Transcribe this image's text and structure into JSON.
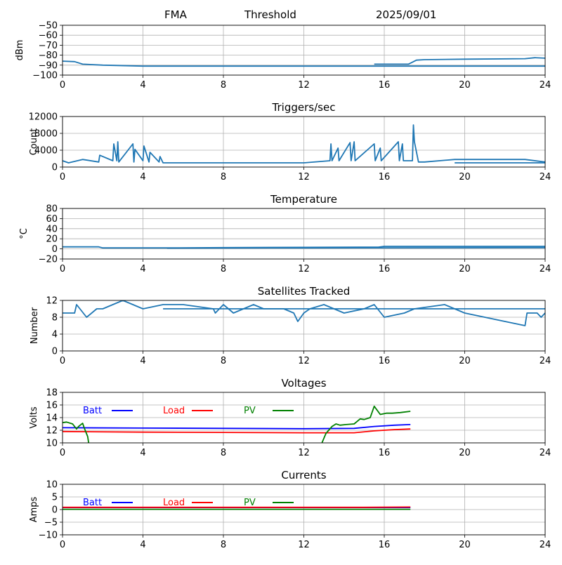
{
  "header": {
    "station": "FMA",
    "mode": "Threshold",
    "date": "2025/09/01"
  },
  "chart_data": [
    {
      "type": "line",
      "title": "",
      "ylabel": "dBm",
      "xlim": [
        0,
        24
      ],
      "ylim": [
        -100,
        -50
      ],
      "xticks": [
        "0",
        "4",
        "8",
        "12",
        "16",
        "20",
        "24"
      ],
      "yticks": [
        "-50",
        "-60",
        "-70",
        "-80",
        "-90",
        "-100"
      ],
      "grid": true,
      "series": [
        {
          "color": "#1f77b4",
          "x": [
            0,
            0.6,
            1,
            2,
            4,
            8,
            12,
            16,
            24
          ],
          "y": [
            -86,
            -86.5,
            -89,
            -90,
            -91,
            -91,
            -91,
            -91,
            -91
          ]
        },
        {
          "color": "#1f77b4",
          "x": [
            15.5,
            17.2,
            17.6,
            18,
            20,
            23,
            23.5,
            24
          ],
          "y": [
            -89,
            -89,
            -85,
            -84.5,
            -84,
            -83.5,
            -82.5,
            -83
          ]
        }
      ]
    },
    {
      "type": "line",
      "title": "Triggers/sec",
      "ylabel": "Count",
      "xlim": [
        0,
        24
      ],
      "ylim": [
        0,
        12000
      ],
      "xticks": [
        "0",
        "4",
        "8",
        "12",
        "16",
        "20",
        "24"
      ],
      "yticks": [
        "0",
        "4000",
        "8000",
        "12000"
      ],
      "grid": true,
      "series": [
        {
          "color": "#1f77b4",
          "x": [
            0,
            0.3,
            1.0,
            1.8,
            1.85,
            2.5,
            2.55,
            2.7,
            2.75,
            2.8,
            3.5,
            3.55,
            3.6,
            4.0,
            4.05,
            4.3,
            4.35,
            4.8,
            4.85,
            5,
            8,
            12,
            13.3,
            13.35,
            13.4,
            13.7,
            13.75,
            14.3,
            14.35,
            14.5,
            14.55,
            15.5,
            15.55,
            15.8,
            15.85,
            16.7,
            16.75,
            16.9,
            16.95,
            17.4,
            17.45,
            17.5,
            17.7,
            18,
            19.5,
            23,
            24
          ],
          "y": [
            1500,
            1000,
            1800,
            1200,
            2800,
            1500,
            5500,
            1500,
            6000,
            1200,
            5500,
            1200,
            4200,
            1500,
            5000,
            1200,
            3500,
            1200,
            2500,
            1000,
            1000,
            1000,
            1500,
            5500,
            1500,
            4500,
            1500,
            5800,
            1500,
            6000,
            1500,
            5500,
            1500,
            4500,
            1500,
            6000,
            1500,
            5500,
            1500,
            1500,
            10000,
            6000,
            1200,
            1200,
            1800,
            1800,
            1200
          ]
        },
        {
          "color": "#1f77b4",
          "x": [
            19.5,
            24
          ],
          "y": [
            1000,
            1000
          ]
        }
      ]
    },
    {
      "type": "line",
      "title": "Temperature",
      "ylabel": "°C",
      "xlim": [
        0,
        24
      ],
      "ylim": [
        -20,
        80
      ],
      "xticks": [
        "0",
        "4",
        "8",
        "12",
        "16",
        "20",
        "24"
      ],
      "yticks": [
        "-20",
        "0",
        "20",
        "40",
        "60",
        "80"
      ],
      "grid": true,
      "series": [
        {
          "color": "#1f77b4",
          "x": [
            0,
            1.8,
            2,
            5.2,
            8,
            12,
            15.7,
            16,
            24
          ],
          "y": [
            4,
            4,
            2,
            2,
            2.5,
            3,
            3.5,
            5,
            5
          ]
        },
        {
          "color": "#1f77b4",
          "x": [
            5.2,
            12,
            24
          ],
          "y": [
            1.5,
            2,
            2.5
          ]
        }
      ]
    },
    {
      "type": "line",
      "title": "Satellites Tracked",
      "ylabel": "Number",
      "xlim": [
        0,
        24
      ],
      "ylim": [
        0,
        12
      ],
      "xticks": [
        "0",
        "4",
        "8",
        "12",
        "16",
        "20",
        "24"
      ],
      "yticks": [
        "0",
        "4",
        "8",
        "12"
      ],
      "grid": true,
      "series": [
        {
          "color": "#1f77b4",
          "x": [
            0,
            0.6,
            0.7,
            1.2,
            1.7,
            2.0,
            2.5,
            3.0,
            3.5,
            4.0,
            5.0,
            6.0,
            7.5,
            7.6,
            8.0,
            8.5,
            9.0,
            9.5,
            10,
            11,
            11.5,
            11.7,
            12,
            12.3,
            13,
            14,
            15,
            15.5,
            16.0,
            17.0,
            17.5,
            19.0,
            19.5,
            20,
            23.0,
            23.1,
            23.6,
            23.8,
            24
          ],
          "y": [
            9,
            9,
            11,
            8,
            10,
            10,
            11,
            12,
            11,
            10,
            11,
            11,
            10,
            9,
            11,
            9,
            10,
            11,
            10,
            10,
            9,
            7,
            9,
            10,
            11,
            9,
            10,
            11,
            8,
            9,
            10,
            11,
            10,
            9,
            6,
            9,
            9,
            8,
            9
          ]
        },
        {
          "color": "#1f77b4",
          "x": [
            5.0,
            24
          ],
          "y": [
            10,
            10
          ]
        }
      ]
    },
    {
      "type": "line",
      "title": "Voltages",
      "ylabel": "Volts",
      "xlim": [
        0,
        24
      ],
      "ylim": [
        10,
        18
      ],
      "xticks": [
        "0",
        "4",
        "8",
        "12",
        "16",
        "20",
        "24"
      ],
      "yticks": [
        "10",
        "12",
        "14",
        "16",
        "18"
      ],
      "grid": true,
      "legend_position": "top",
      "series": [
        {
          "name": "Batt",
          "color": "#0000ff",
          "x": [
            0,
            4,
            8,
            12,
            14.5,
            15.5,
            16.5,
            17.3
          ],
          "y": [
            12.4,
            12.35,
            12.3,
            12.25,
            12.3,
            12.6,
            12.8,
            12.9
          ]
        },
        {
          "name": "Load",
          "color": "#ff0000",
          "x": [
            0,
            4,
            8,
            12,
            14.5,
            15.5,
            16.5,
            17.3
          ],
          "y": [
            11.8,
            11.7,
            11.65,
            11.6,
            11.6,
            11.9,
            12.1,
            12.2
          ]
        },
        {
          "name": "PV",
          "color": "#008000",
          "x": [
            0,
            0.2,
            0.5,
            0.7,
            0.8,
            1.0,
            1.1,
            1.25,
            1.3
          ],
          "y": [
            13.2,
            13.3,
            13.0,
            12.2,
            12.6,
            13.1,
            12.2,
            11.0,
            10.0
          ]
        },
        {
          "name": "PV",
          "color": "#008000",
          "x": [
            12.9,
            13.1,
            13.4,
            13.6,
            13.8,
            14.1,
            14.5,
            14.8,
            15.0,
            15.3,
            15.5,
            15.8,
            16.1,
            16.4,
            16.8,
            17.3
          ],
          "y": [
            10.0,
            11.5,
            12.6,
            13.0,
            12.8,
            12.9,
            13.0,
            13.8,
            13.7,
            14.0,
            15.8,
            14.5,
            14.7,
            14.7,
            14.8,
            15.0
          ]
        }
      ]
    },
    {
      "type": "line",
      "title": "Currents",
      "ylabel": "Amps",
      "xlim": [
        0,
        24
      ],
      "ylim": [
        -10,
        10
      ],
      "xticks": [
        "0",
        "4",
        "8",
        "12",
        "16",
        "20",
        "24"
      ],
      "yticks": [
        "-10",
        "-5",
        "0",
        "5",
        "10"
      ],
      "grid": true,
      "legend_position": "top",
      "series": [
        {
          "name": "Batt",
          "color": "#0000ff",
          "x": [
            0,
            17.3
          ],
          "y": [
            0.8,
            0.8
          ]
        },
        {
          "name": "Load",
          "color": "#ff0000",
          "x": [
            0,
            15,
            17.3
          ],
          "y": [
            0.9,
            0.9,
            1.0
          ]
        },
        {
          "name": "PV",
          "color": "#008000",
          "x": [
            0,
            17.3
          ],
          "y": [
            0.1,
            0.1
          ]
        }
      ]
    }
  ]
}
